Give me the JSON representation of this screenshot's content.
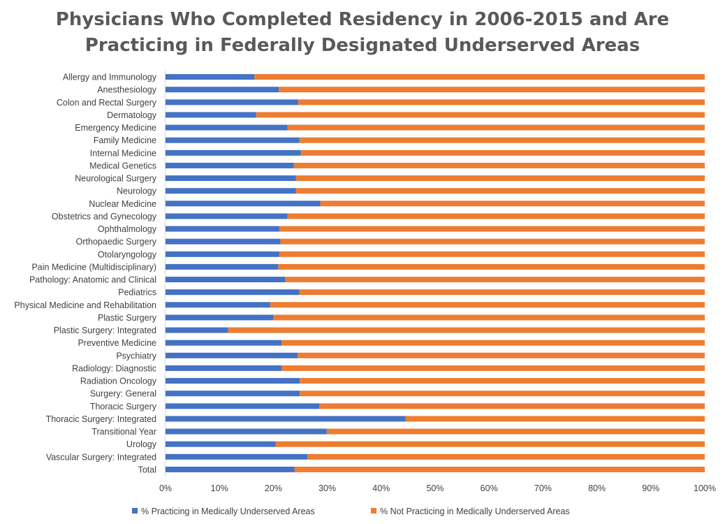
{
  "chart_data": {
    "type": "bar",
    "orientation": "horizontal",
    "stacked": true,
    "title_lines": [
      "Physicians Who Completed Residency in 2006-2015 and Are",
      "Practicing in Federally Designated Underserved Areas"
    ],
    "categories": [
      "Allergy and Immunology",
      "Anesthesiology",
      "Colon and Rectal Surgery",
      "Dermatology",
      "Emergency Medicine",
      "Family Medicine",
      "Internal Medicine",
      "Medical Genetics",
      "Neurological Surgery",
      "Neurology",
      "Nuclear Medicine",
      "Obstetrics and Gynecology",
      "Ophthalmology",
      "Orthopaedic Surgery",
      "Otolaryngology",
      "Pain Medicine (Multidisciplinary)",
      "Pathology: Anatomic and Clinical",
      "Pediatrics",
      "Physical Medicine and Rehabilitation",
      "Plastic Surgery",
      "Plastic Surgery: Integrated",
      "Preventive Medicine",
      "Psychiatry",
      "Radiology: Diagnostic",
      "Radiation Oncology",
      "Surgery: General",
      "Thoracic Surgery",
      "Thoracic Surgery: Integrated",
      "Transitional Year",
      "Urology",
      "Vascular Surgery: Integrated",
      "Total"
    ],
    "series": [
      {
        "name": "% Practicing in Medically Underserved Areas",
        "color": "#4472c4",
        "values": [
          16.5,
          21.0,
          24.6,
          16.8,
          22.6,
          24.8,
          25.1,
          23.8,
          24.2,
          24.2,
          28.7,
          22.6,
          21.1,
          21.3,
          21.1,
          20.9,
          22.2,
          24.8,
          19.4,
          20.0,
          11.6,
          21.5,
          24.5,
          21.5,
          24.9,
          24.9,
          28.5,
          44.5,
          29.9,
          20.4,
          26.3,
          23.9
        ]
      },
      {
        "name": "% Not Practicing in Medically Underserved Areas",
        "color": "#ed7d31",
        "values": [
          83.5,
          79.0,
          75.4,
          83.2,
          77.4,
          75.2,
          74.9,
          76.2,
          75.8,
          75.8,
          71.3,
          77.4,
          78.9,
          78.7,
          78.9,
          79.1,
          77.8,
          75.2,
          80.6,
          80.0,
          88.4,
          78.5,
          75.5,
          78.5,
          75.1,
          75.1,
          71.5,
          55.5,
          70.1,
          79.6,
          73.7,
          76.1
        ]
      }
    ],
    "x_ticks": [
      "0%",
      "10%",
      "20%",
      "30%",
      "40%",
      "50%",
      "60%",
      "70%",
      "80%",
      "90%",
      "100%"
    ],
    "xlim": [
      0,
      100
    ],
    "grid": false,
    "legend_position": "bottom"
  }
}
